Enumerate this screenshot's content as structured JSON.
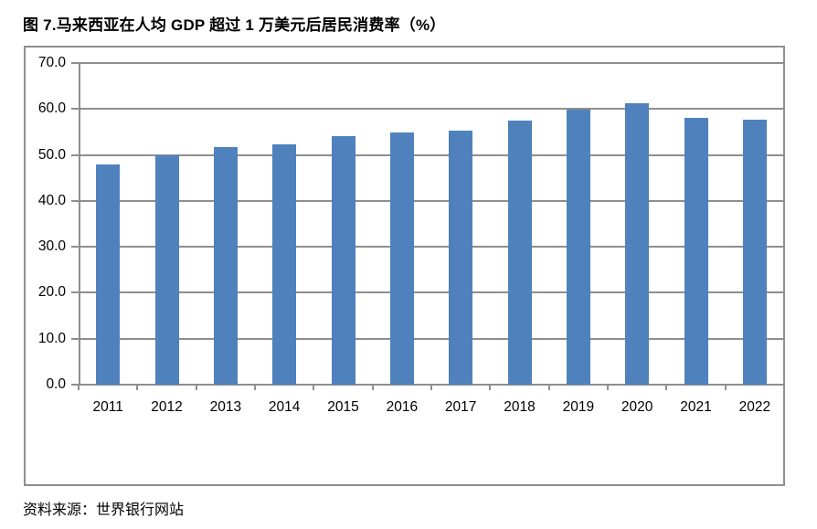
{
  "title": "图 7.马来西亚在人均 GDP 超过 1 万美元后居民消费率（%）",
  "source": "资料来源：世界银行网站",
  "chart_data": {
    "type": "bar",
    "title": "图 7.马来西亚在人均 GDP 超过 1 万美元后居民消费率（%）",
    "categories": [
      "2011",
      "2012",
      "2013",
      "2014",
      "2015",
      "2016",
      "2017",
      "2018",
      "2019",
      "2020",
      "2021",
      "2022"
    ],
    "values": [
      47.9,
      50.0,
      51.8,
      52.4,
      54.0,
      54.8,
      55.3,
      57.4,
      59.9,
      61.3,
      58.0,
      57.6
    ],
    "xlabel": "",
    "ylabel": "",
    "ylim": [
      0,
      70
    ],
    "ytick_step": 10,
    "ytick_labels": [
      "0.0",
      "10.0",
      "20.0",
      "30.0",
      "40.0",
      "50.0",
      "60.0",
      "70.0"
    ],
    "grid": true,
    "legend": "none",
    "bar_color": "#4F81BD",
    "axis_color": "#8E8E8E"
  }
}
